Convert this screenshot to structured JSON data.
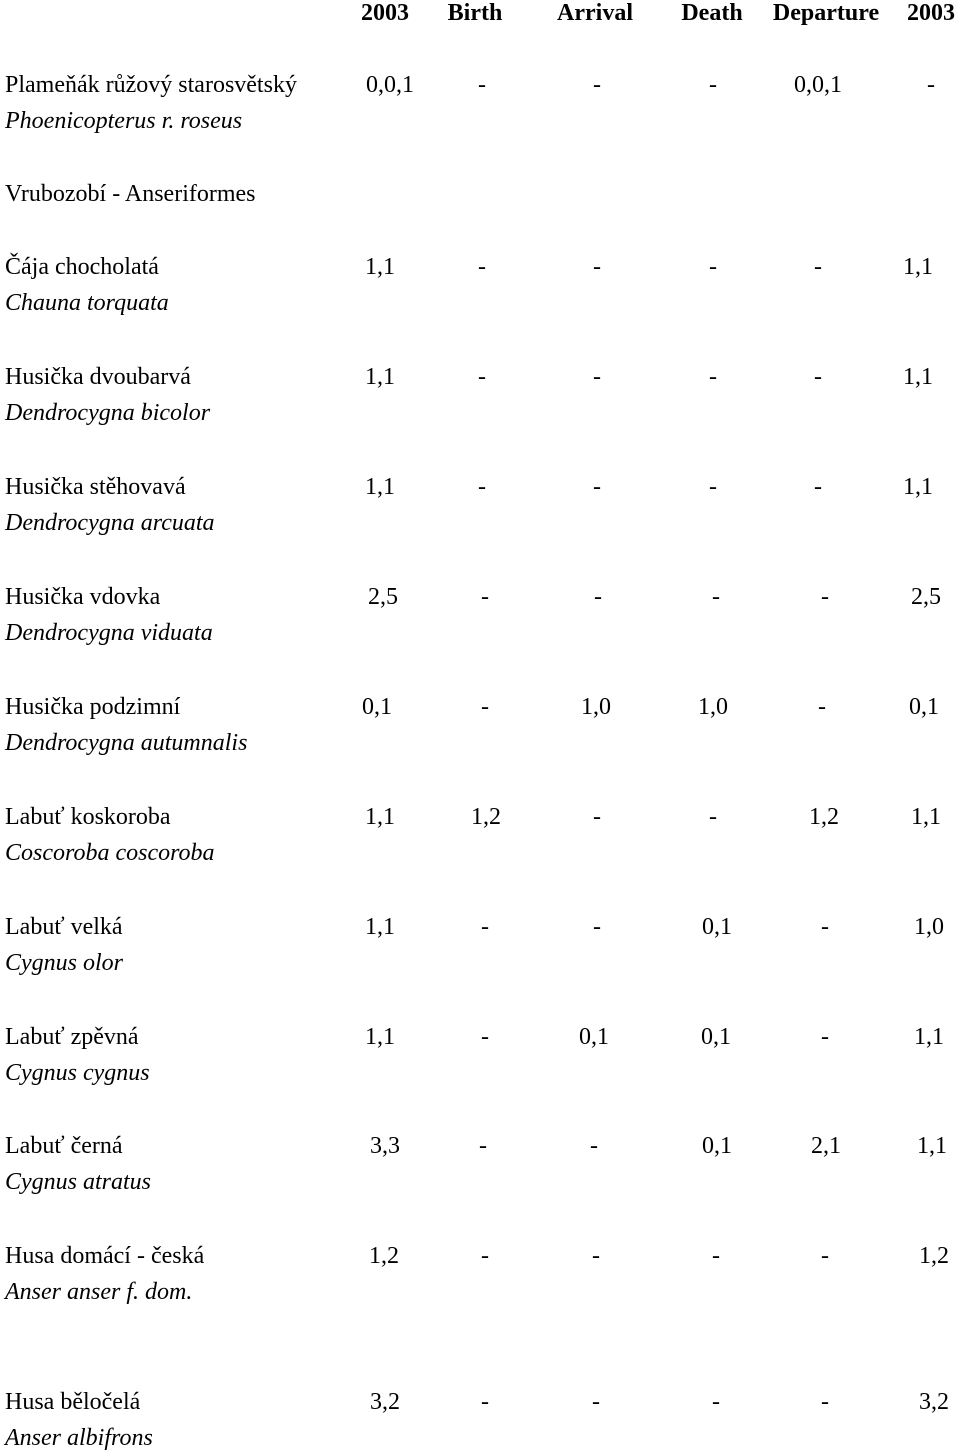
{
  "headers": [
    "2003",
    "Birth",
    "Arrival",
    "Death",
    "Departure",
    "2003"
  ],
  "groups": [
    {
      "label": "Vrubozobí - Anseriformes"
    }
  ],
  "species": [
    {
      "name": "Plameňák růžový starosvětský",
      "latin": "Phoenicopterus r. roseus",
      "values": [
        "0,0,1",
        "-",
        "-",
        "-",
        "0,0,1",
        "-"
      ]
    },
    {
      "name": "Čája chocholatá",
      "latin": "Chauna torquata",
      "values": [
        "1,1",
        "-",
        "-",
        "-",
        "-",
        "1,1"
      ]
    },
    {
      "name": "Husička dvoubarvá",
      "latin": "Dendrocygna bicolor",
      "values": [
        "1,1",
        "-",
        "-",
        "-",
        "-",
        "1,1"
      ]
    },
    {
      "name": "Husička stěhovavá",
      "latin": "Dendrocygna arcuata",
      "values": [
        "1,1",
        "-",
        "-",
        "-",
        "-",
        "1,1"
      ]
    },
    {
      "name": "Husička vdovka",
      "latin": "Dendrocygna viduata",
      "values": [
        "2,5",
        "-",
        "-",
        "-",
        "-",
        "2,5"
      ]
    },
    {
      "name": "Husička podzimní",
      "latin": "Dendrocygna autumnalis",
      "values": [
        "0,1",
        "-",
        "1,0",
        "1,0",
        "-",
        "0,1"
      ]
    },
    {
      "name": "Labuť koskoroba",
      "latin": "Coscoroba coscoroba",
      "values": [
        "1,1",
        "1,2",
        "-",
        "-",
        "1,2",
        "1,1"
      ]
    },
    {
      "name": "Labuť velká",
      "latin": "Cygnus olor",
      "values": [
        "1,1",
        "-",
        "-",
        "0,1",
        "-",
        "1,0"
      ]
    },
    {
      "name": "Labuť zpěvná",
      "latin": "Cygnus cygnus",
      "values": [
        "1,1",
        "-",
        "0,1",
        "0,1",
        "-",
        "1,1"
      ]
    },
    {
      "name": "Labuť černá",
      "latin": "Cygnus atratus",
      "values": [
        "3,3",
        "-",
        "-",
        "0,1",
        "2,1",
        "1,1"
      ]
    },
    {
      "name": "Husa domácí - česká",
      "latin": "Anser anser f. dom.",
      "values": [
        "1,2",
        "-",
        "-",
        "-",
        "-",
        "1,2"
      ]
    },
    {
      "name": "Husa běločelá",
      "latin": "Anser albifrons",
      "values": [
        "3,2",
        "-",
        "-",
        "-",
        "-",
        "3,2"
      ]
    }
  ]
}
